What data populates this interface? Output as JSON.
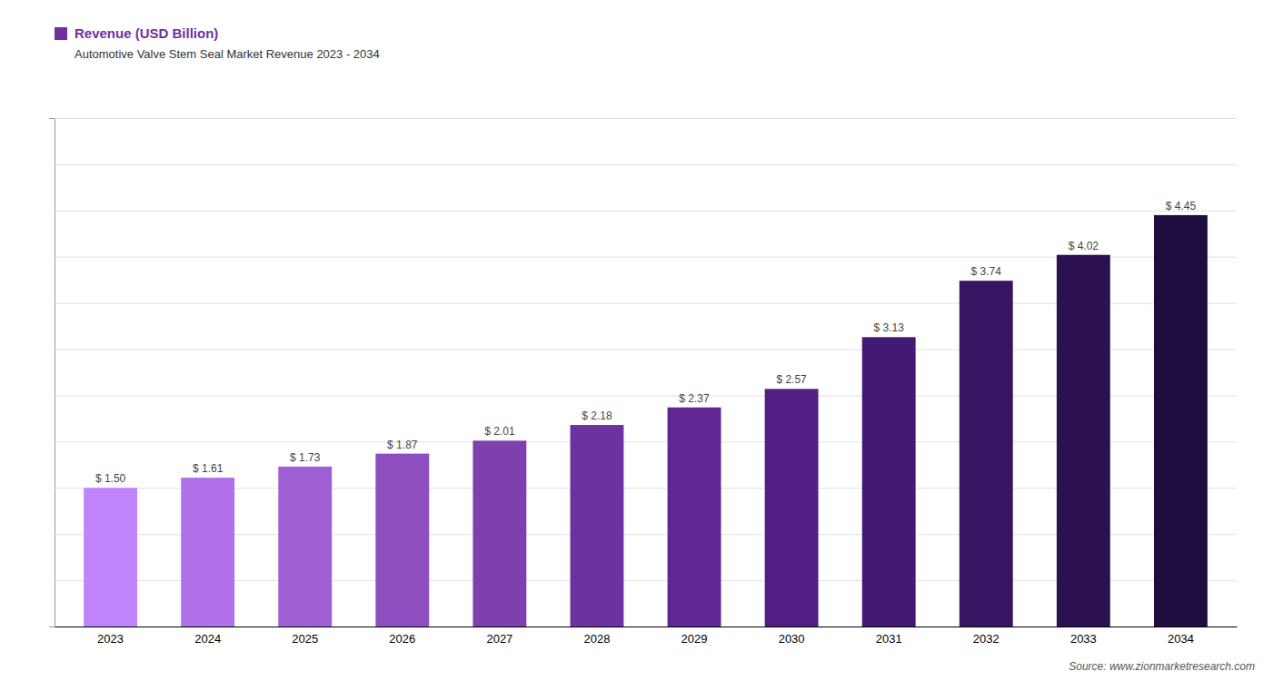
{
  "chart_data": {
    "type": "bar",
    "subtitle": "Automotive Valve Stem Seal Market Revenue 2023 - 2034",
    "categories": [
      "2023",
      "2024",
      "2025",
      "2026",
      "2027",
      "2028",
      "2029",
      "2030",
      "2031",
      "2032",
      "2033",
      "2034"
    ],
    "series": [
      {
        "name": "Revenue (USD Billion)",
        "color": "#7030a0",
        "colors": [
          "#c084fc",
          "#b070e8",
          "#9f5ed4",
          "#8e4ec0",
          "#7e40ac",
          "#6e32a0",
          "#602694",
          "#521e84",
          "#441974",
          "#381562",
          "#2c1150",
          "#200d40"
        ],
        "values": [
          1.5,
          1.61,
          1.73,
          1.87,
          2.01,
          2.18,
          2.37,
          2.57,
          3.13,
          3.74,
          4.02,
          4.45
        ],
        "value_labels": [
          "$ 1.50",
          "$ 1.61",
          "$ 1.73",
          "$ 1.87",
          "$ 2.01",
          "$ 2.18",
          "$ 2.37",
          "$ 2.57",
          "$ 3.13",
          "$ 3.74",
          "$ 4.02",
          "$ 4.45"
        ]
      }
    ],
    "ylim": [
      0,
      5.5
    ],
    "yticks": [
      0,
      0.5,
      1,
      1.5,
      2,
      2.5,
      3,
      3.5,
      4,
      4.5,
      5,
      5.5
    ],
    "grid": true,
    "legend": "upper left",
    "data_labels": true,
    "tick_labels": "x",
    "annotations": [
      "Source: www.zionmarketresearch.com"
    ]
  }
}
